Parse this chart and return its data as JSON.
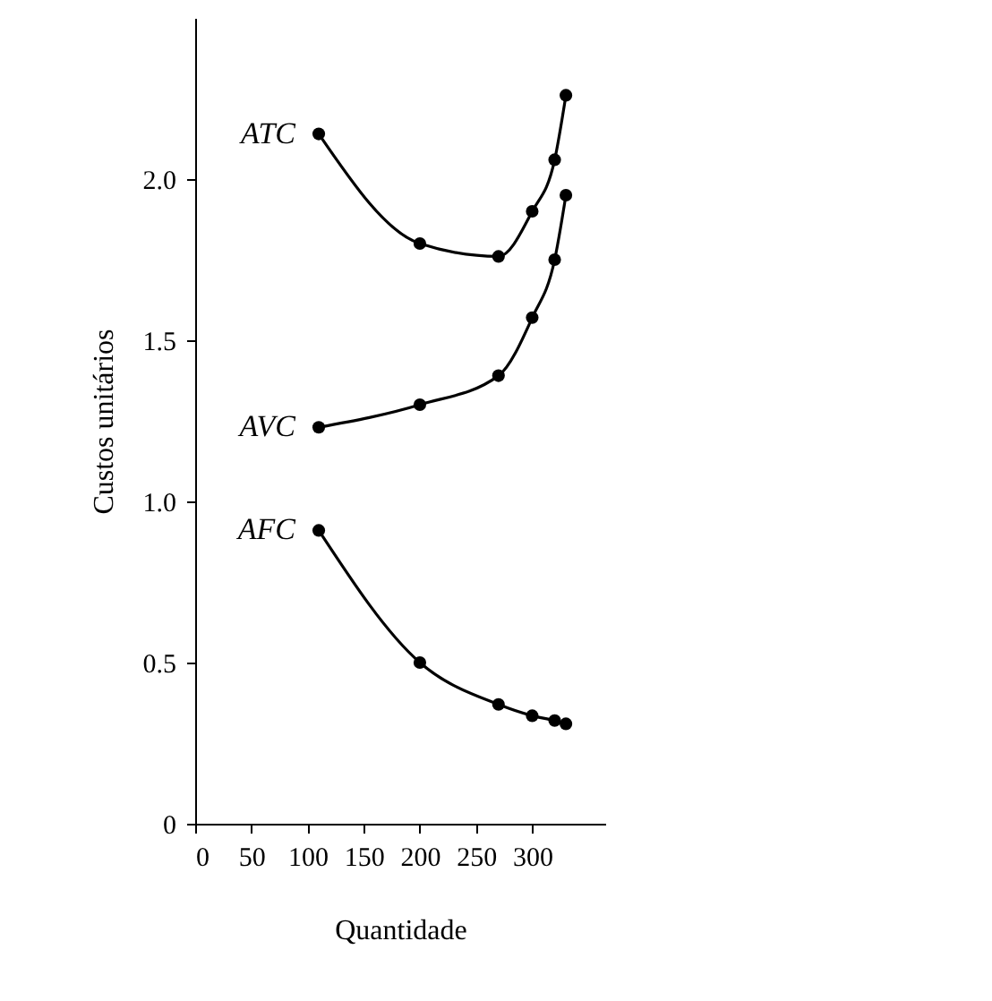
{
  "chart_data": {
    "type": "line",
    "xlabel": "Quantidade",
    "ylabel": "Custos unitários",
    "x": [
      110,
      200,
      270,
      300,
      320,
      330
    ],
    "series": [
      {
        "name": "ATC",
        "color": "#000000",
        "values": [
          2.14,
          1.8,
          1.76,
          1.9,
          2.06,
          2.26
        ]
      },
      {
        "name": "AVC",
        "color": "#000000",
        "values": [
          1.23,
          1.3,
          1.39,
          1.57,
          1.75,
          1.95
        ]
      },
      {
        "name": "AFC",
        "color": "#000000",
        "values": [
          0.91,
          0.5,
          0.37,
          0.335,
          0.32,
          0.31
        ]
      }
    ],
    "xlim": [
      0,
      365
    ],
    "ylim": [
      0,
      2.5
    ],
    "xticks": [
      0,
      50,
      100,
      150,
      200,
      250,
      300
    ],
    "yticks": [
      0,
      0.5,
      {
        "value": 1,
        "label": "1.0"
      },
      1.5,
      {
        "value": 2,
        "label": "2.0"
      }
    ],
    "marker": "circle",
    "grid": false,
    "legend": false
  }
}
